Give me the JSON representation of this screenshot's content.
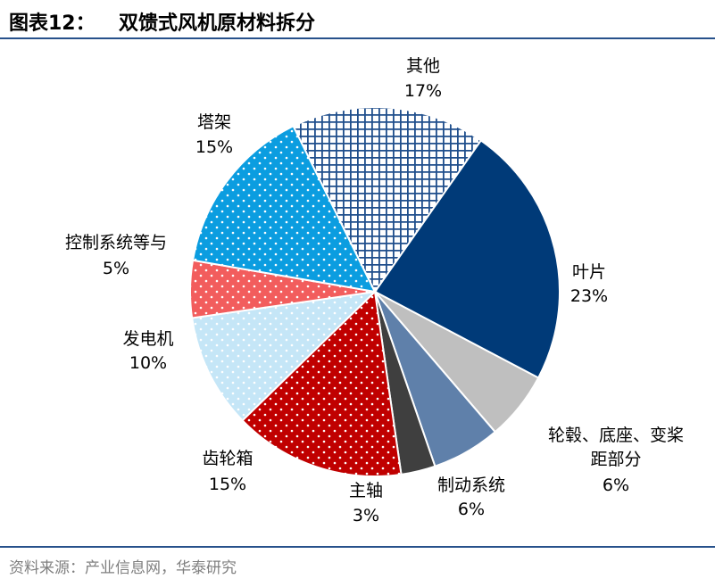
{
  "figure_label": "图表12：",
  "title": "双馈式风机原材料拆分",
  "source": "资料来源：产业信息网，华泰研究",
  "chart_data": {
    "type": "pie",
    "title": "双馈式风机原材料拆分",
    "start_angle_deg": 35,
    "direction": "clockwise",
    "slices": [
      {
        "label": "叶片",
        "value": 23,
        "value_label": "23%",
        "color": "#003a78",
        "pattern": "solid"
      },
      {
        "label": "轮毂、底座、变桨距部分",
        "label_lines": [
          "轮毂、底座、变桨",
          "距部分"
        ],
        "value": 6,
        "value_label": "6%",
        "color": "#bfbfbf",
        "pattern": "solid"
      },
      {
        "label": "制动系统",
        "value": 6,
        "value_label": "6%",
        "color": "#5f80aa",
        "pattern": "solid"
      },
      {
        "label": "主轴",
        "value": 3,
        "value_label": "3%",
        "color": "#3f3f3f",
        "pattern": "solid"
      },
      {
        "label": "齿轮箱",
        "value": 15,
        "value_label": "15%",
        "color": "#c00000",
        "pattern": "dots"
      },
      {
        "label": "发电机",
        "value": 10,
        "value_label": "10%",
        "color": "#c5e6f7",
        "pattern": "dots"
      },
      {
        "label": "控制系统等与",
        "value": 5,
        "value_label": "5%",
        "color": "#f25d5d",
        "pattern": "dots"
      },
      {
        "label": "塔架",
        "value": 15,
        "value_label": "15%",
        "color": "#0b9de0",
        "pattern": "dots"
      },
      {
        "label": "其他",
        "value": 17,
        "value_label": "17%",
        "color": "#1f4e8c",
        "pattern": "grid"
      }
    ],
    "legend": "none",
    "data_labels": "outside"
  }
}
